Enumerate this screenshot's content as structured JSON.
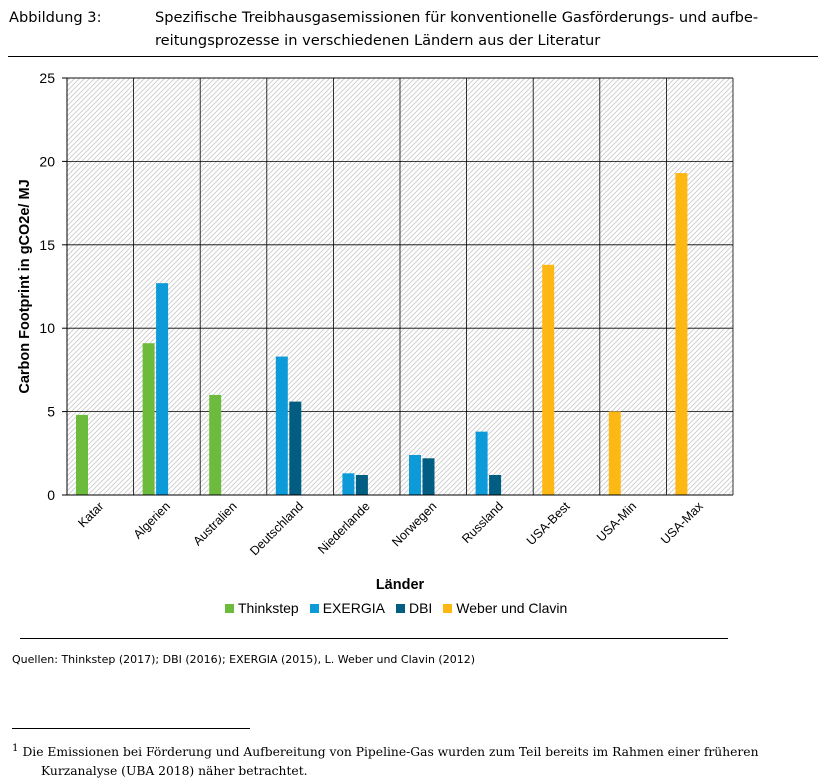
{
  "figure": {
    "label": "Abbildung 3:",
    "title": "Spezifische Treibhausgasemissionen für konventionelle Gasförderungs- und aufbereitungsprozesse in verschiedenen Ländern aus der Literatur",
    "title_line1": "Spezifische Treibhausgasemissionen für konventionelle Gasförderungs- und aufbe-",
    "title_line2": "reitungsprozesse in verschiedenen Ländern aus der Literatur"
  },
  "sources": "Quellen: Thinkstep (2017); DBI (2016); EXERGIA (2015), L. Weber und Clavin (2012)",
  "footnote": {
    "marker": "1",
    "line1": "Die Emissionen bei Förderung und Aufbereitung von Pipeline-Gas wurden zum Teil bereits im Rahmen einer früheren",
    "line2": "Kurzanalyse (UBA 2018) näher betrachtet."
  },
  "chart_data": {
    "type": "bar",
    "title": "",
    "xlabel": "Länder",
    "ylabel": "Carbon Footprint in gCO2e/ MJ",
    "ylim": [
      0,
      25
    ],
    "yticks": [
      "0",
      "5",
      "10",
      "15",
      "20",
      "25"
    ],
    "categories": [
      "Katar",
      "Algerien",
      "Australien",
      "Deutschland",
      "Niederlande",
      "Norwegen",
      "Russland",
      "USA-Best",
      "USA-Min",
      "USA-Max"
    ],
    "series": [
      {
        "name": "Thinkstep",
        "color": "#6dbb3c",
        "values": [
          4.8,
          9.1,
          6.0,
          null,
          null,
          null,
          null,
          null,
          null,
          null
        ]
      },
      {
        "name": "EXERGIA",
        "color": "#0d9ad8",
        "values": [
          null,
          12.7,
          null,
          8.3,
          1.3,
          2.4,
          3.8,
          null,
          null,
          null
        ]
      },
      {
        "name": "DBI",
        "color": "#015d82",
        "values": [
          null,
          null,
          null,
          5.6,
          1.2,
          2.2,
          1.2,
          null,
          null,
          null
        ]
      },
      {
        "name": "Weber und Clavin",
        "color": "#fdb813",
        "values": [
          null,
          null,
          null,
          null,
          null,
          null,
          null,
          13.8,
          5.0,
          19.3
        ]
      }
    ],
    "grid": true,
    "legend": "bottom"
  }
}
